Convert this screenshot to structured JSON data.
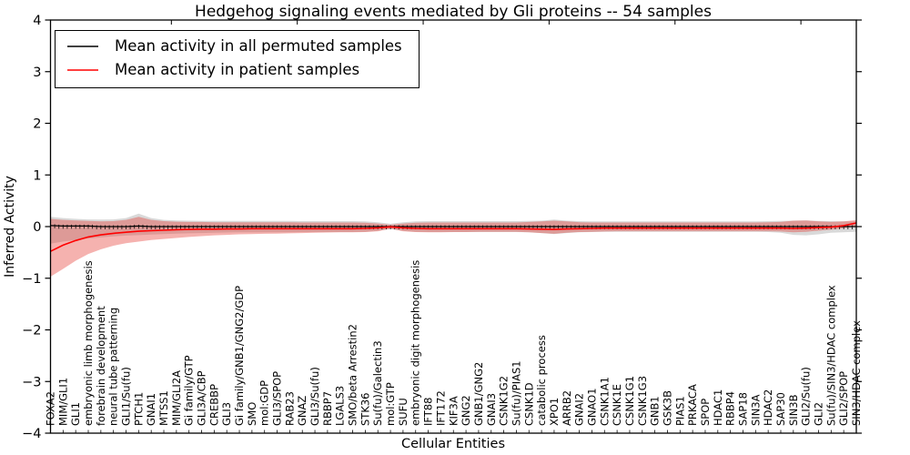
{
  "chart_data": {
    "type": "line",
    "title": "Hedgehog signaling events mediated by Gli proteins -- 54 samples",
    "xlabel": "Cellular Entities",
    "ylabel": "Inferred Activity",
    "ylim": [
      -4,
      4
    ],
    "yticks": [
      4,
      3,
      2,
      1,
      0,
      -1,
      -2,
      -3,
      -4
    ],
    "yticklabels": [
      "4",
      "3",
      "2",
      "1",
      "0",
      "−1",
      "−2",
      "−3",
      "−4"
    ],
    "grid": false,
    "legend_position": "upper left",
    "categories": [
      "FOXA2",
      "MIM/GLI1",
      "GLI1",
      "embryonic limb morphogenesis",
      "forebrain development",
      "neural tube patterning",
      "GLI1/Su(fu)",
      "PTCH1",
      "GNAI1",
      "MTSS1",
      "MIM/GLI2A",
      "Gi family/GTP",
      "GLI3A/CBP",
      "CREBBP",
      "GLI3",
      "Gi family/GNB1/GNG2/GDP",
      "SMO",
      "mol:GDP",
      "GLI3/SPOP",
      "RAB23",
      "GNAZ",
      "GLI3/Su(fu)",
      "RBBP7",
      "LGALS3",
      "SMO/beta Arrestin2",
      "STK36",
      "Su(fu)/Galectin3",
      "mol:GTP",
      "SUFU",
      "embryonic digit morphogenesis",
      "IFT88",
      "IFT172",
      "KIF3A",
      "GNG2",
      "GNB1/GNG2",
      "GNAI3",
      "CSNK1G2",
      "Su(fu)/PIAS1",
      "CSNK1D",
      "catabolic process",
      "XPO1",
      "ARRB2",
      "GNAI2",
      "GNAO1",
      "CSNK1A1",
      "CSNK1E",
      "CSNK1G1",
      "CSNK1G3",
      "GNB1",
      "GSK3B",
      "PIAS1",
      "PRKACA",
      "SPOP",
      "HDAC1",
      "RBBP4",
      "SAP18",
      "SIN3A",
      "HDAC2",
      "SAP30",
      "SIN3B",
      "GLI2/Su(fu)",
      "GLI2",
      "Su(fu)/SIN3/HDAC complex",
      "GLI2/SPOP",
      "SIN3/HDAC complex"
    ],
    "series": [
      {
        "name": "Mean activity in all permuted samples",
        "color": "#000000",
        "values": [
          0.02,
          0.01,
          0.01,
          0.01,
          0.0,
          0.0,
          0.0,
          0.01,
          0.0,
          0.0,
          0.0,
          0.0,
          0.0,
          0.0,
          0.0,
          0.0,
          0.0,
          0.0,
          0.0,
          0.0,
          0.0,
          0.0,
          0.0,
          0.0,
          0.0,
          0.0,
          0.0,
          0.0,
          0.0,
          0.0,
          0.0,
          0.0,
          0.0,
          0.0,
          0.0,
          0.0,
          0.0,
          0.0,
          0.0,
          0.0,
          0.0,
          0.0,
          0.0,
          0.0,
          0.0,
          0.0,
          0.0,
          0.0,
          0.0,
          0.0,
          0.0,
          0.0,
          0.0,
          0.0,
          0.0,
          0.0,
          0.0,
          0.0,
          0.0,
          0.0,
          0.0,
          0.0,
          0.0,
          0.0,
          0.0
        ]
      },
      {
        "name": "Mean activity in patient samples",
        "color": "#ff0000",
        "values": [
          -0.48,
          -0.36,
          -0.27,
          -0.2,
          -0.16,
          -0.13,
          -0.11,
          -0.09,
          -0.08,
          -0.07,
          -0.06,
          -0.055,
          -0.05,
          -0.05,
          -0.045,
          -0.045,
          -0.04,
          -0.04,
          -0.04,
          -0.04,
          -0.04,
          -0.04,
          -0.04,
          -0.04,
          -0.04,
          -0.035,
          -0.025,
          -0.005,
          -0.025,
          -0.035,
          -0.04,
          -0.04,
          -0.04,
          -0.04,
          -0.04,
          -0.04,
          -0.04,
          -0.04,
          -0.045,
          -0.05,
          -0.055,
          -0.045,
          -0.04,
          -0.035,
          -0.03,
          -0.03,
          -0.03,
          -0.03,
          -0.03,
          -0.03,
          -0.03,
          -0.03,
          -0.03,
          -0.03,
          -0.03,
          -0.03,
          -0.03,
          -0.03,
          -0.03,
          -0.035,
          -0.03,
          -0.02,
          -0.01,
          0.02,
          0.07
        ]
      }
    ],
    "bands": [
      {
        "name": "permuted-range",
        "color": "#000000",
        "opacity": 0.15,
        "low": [
          -0.33,
          -0.29,
          -0.26,
          -0.23,
          -0.21,
          -0.19,
          -0.175,
          -0.165,
          -0.155,
          -0.145,
          -0.135,
          -0.13,
          -0.125,
          -0.12,
          -0.115,
          -0.11,
          -0.11,
          -0.11,
          -0.11,
          -0.11,
          -0.105,
          -0.105,
          -0.105,
          -0.105,
          -0.105,
          -0.1,
          -0.085,
          -0.05,
          -0.085,
          -0.1,
          -0.105,
          -0.105,
          -0.105,
          -0.105,
          -0.105,
          -0.105,
          -0.105,
          -0.105,
          -0.11,
          -0.125,
          -0.145,
          -0.125,
          -0.11,
          -0.105,
          -0.1,
          -0.1,
          -0.1,
          -0.1,
          -0.1,
          -0.1,
          -0.1,
          -0.1,
          -0.1,
          -0.1,
          -0.1,
          -0.1,
          -0.1,
          -0.105,
          -0.12,
          -0.16,
          -0.17,
          -0.15,
          -0.12,
          -0.11,
          -0.1
        ],
        "high": [
          0.19,
          0.165,
          0.15,
          0.14,
          0.135,
          0.14,
          0.165,
          0.25,
          0.165,
          0.13,
          0.12,
          0.115,
          0.11,
          0.11,
          0.11,
          0.11,
          0.11,
          0.11,
          0.11,
          0.11,
          0.105,
          0.105,
          0.105,
          0.105,
          0.105,
          0.1,
          0.085,
          0.055,
          0.085,
          0.1,
          0.105,
          0.105,
          0.105,
          0.105,
          0.105,
          0.105,
          0.105,
          0.105,
          0.11,
          0.115,
          0.135,
          0.115,
          0.105,
          0.1,
          0.1,
          0.1,
          0.1,
          0.1,
          0.1,
          0.1,
          0.1,
          0.1,
          0.1,
          0.1,
          0.1,
          0.1,
          0.1,
          0.105,
          0.11,
          0.115,
          0.12,
          0.11,
          0.105,
          0.1,
          0.1
        ]
      },
      {
        "name": "patient-range",
        "color": "#e5342c",
        "opacity": 0.38,
        "low": [
          -0.97,
          -0.82,
          -0.66,
          -0.53,
          -0.44,
          -0.37,
          -0.32,
          -0.29,
          -0.26,
          -0.24,
          -0.22,
          -0.2,
          -0.185,
          -0.17,
          -0.16,
          -0.15,
          -0.145,
          -0.14,
          -0.135,
          -0.13,
          -0.125,
          -0.12,
          -0.115,
          -0.11,
          -0.11,
          -0.105,
          -0.09,
          -0.04,
          -0.09,
          -0.105,
          -0.11,
          -0.11,
          -0.105,
          -0.105,
          -0.1,
          -0.1,
          -0.1,
          -0.1,
          -0.11,
          -0.125,
          -0.14,
          -0.12,
          -0.105,
          -0.1,
          -0.095,
          -0.09,
          -0.09,
          -0.09,
          -0.09,
          -0.09,
          -0.09,
          -0.09,
          -0.09,
          -0.09,
          -0.09,
          -0.09,
          -0.09,
          -0.09,
          -0.095,
          -0.11,
          -0.1,
          -0.08,
          -0.06,
          -0.03,
          0.01
        ],
        "high": [
          0.15,
          0.13,
          0.12,
          0.11,
          0.1,
          0.105,
          0.13,
          0.19,
          0.13,
          0.105,
          0.095,
          0.09,
          0.09,
          0.085,
          0.085,
          0.085,
          0.085,
          0.085,
          0.085,
          0.085,
          0.08,
          0.08,
          0.08,
          0.08,
          0.08,
          0.075,
          0.06,
          0.035,
          0.06,
          0.075,
          0.08,
          0.08,
          0.08,
          0.08,
          0.08,
          0.08,
          0.08,
          0.08,
          0.09,
          0.1,
          0.115,
          0.1,
          0.085,
          0.08,
          0.08,
          0.08,
          0.08,
          0.08,
          0.08,
          0.08,
          0.08,
          0.08,
          0.08,
          0.08,
          0.08,
          0.08,
          0.08,
          0.085,
          0.09,
          0.115,
          0.12,
          0.1,
          0.09,
          0.1,
          0.125
        ]
      }
    ]
  }
}
